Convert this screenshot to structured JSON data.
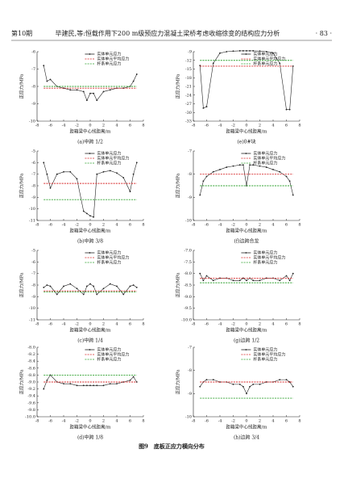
{
  "header": {
    "issue": "第10期",
    "authors_title": "毕建民,等:恒载作用下200 m级预应力混凝土梁桥考虑收缩徐变的结构应力分析",
    "page": "· 83 ·"
  },
  "figure_caption": "图9　底板正应力横向分布",
  "chart_data": [
    {
      "type": "line",
      "caption": "(a)中跨 1/2",
      "xlabel": "距箱梁中心线距离/m",
      "ylabel": "正应力/MPa",
      "xlim": [
        -8,
        8
      ],
      "xticks": [
        -8,
        -6,
        -4,
        -2,
        0,
        2,
        4,
        6,
        8
      ],
      "ylim": [
        -10,
        -6
      ],
      "yticks": [
        -10,
        -9,
        -8,
        -7,
        -6
      ],
      "x": [
        -7,
        -6.5,
        -6,
        -5,
        -4,
        -3,
        -2,
        -1,
        -0.5,
        0,
        0.5,
        1,
        2,
        3,
        4,
        5,
        6,
        6.5,
        7
      ],
      "series": [
        {
          "name": "实体单元应力",
          "color": "#222222",
          "linestyle": "solid",
          "marker": "circle",
          "values": [
            -6.8,
            -7.7,
            -7.6,
            -8.0,
            -8.1,
            -8.2,
            -8.2,
            -8.3,
            -8.8,
            -8.4,
            -8.4,
            -8.8,
            -8.3,
            -8.2,
            -8.1,
            -8.1,
            -8.0,
            -7.7,
            -7.3
          ]
        },
        {
          "name": "实体单元平均应力",
          "color": "#d62728",
          "linestyle": "dashed",
          "marker": "none",
          "values": [
            -8.1,
            -8.1,
            -8.1,
            -8.1,
            -8.1,
            -8.1,
            -8.1,
            -8.1,
            -8.1,
            -8.1,
            -8.1,
            -8.1,
            -8.1,
            -8.1,
            -8.1,
            -8.1,
            -8.1,
            -8.1,
            -8.1
          ]
        },
        {
          "name": "杆系单元应力",
          "color": "#2ca02c",
          "linestyle": "dashed",
          "marker": "none",
          "values": [
            -8.0,
            -8.0,
            -8.0,
            -8.0,
            -8.0,
            -8.0,
            -8.0,
            -8.0,
            -8.0,
            -8.0,
            -8.0,
            -8.0,
            -8.0,
            -8.0,
            -8.0,
            -8.0,
            -8.0,
            -8.0,
            -8.0
          ]
        }
      ]
    },
    {
      "type": "line",
      "caption": "(e)0#块",
      "xlabel": "距箱梁中心线距离/m",
      "ylabel": "正应力/MPa",
      "xlim": [
        -8,
        8
      ],
      "xticks": [
        -8,
        -6,
        -4,
        -2,
        0,
        2,
        4,
        6,
        8
      ],
      "ylim": [
        -33,
        -9
      ],
      "yticks": [
        -33,
        -30,
        -27,
        -24,
        -21,
        -18,
        -15,
        -12,
        -9
      ],
      "x": [
        -7,
        -6.5,
        -6,
        -5,
        -4,
        -3,
        -2,
        -1,
        -0.5,
        0,
        0.5,
        1,
        2,
        3,
        4,
        5,
        6,
        6.5,
        7
      ],
      "series": [
        {
          "name": "实体单元应力",
          "color": "#222222",
          "linestyle": "solid",
          "marker": "circle",
          "values": [
            -13.8,
            -28.5,
            -28,
            -13,
            -9.5,
            -9,
            -8.8,
            -8.7,
            -8.7,
            -8.7,
            -8.7,
            -8.7,
            -8.8,
            -9,
            -9.5,
            -13,
            -29,
            -29,
            -14
          ]
        },
        {
          "name": "实体单元平均应力",
          "color": "#d62728",
          "linestyle": "dashed",
          "marker": "none",
          "values": [
            -14,
            -14,
            -14,
            -14,
            -14,
            -14,
            -14,
            -14,
            -14,
            -14,
            -14,
            -14,
            -14,
            -14,
            -14,
            -14,
            -14,
            -14,
            -14
          ]
        },
        {
          "name": "杆系单元应力",
          "color": "#2ca02c",
          "linestyle": "dashed",
          "marker": "none",
          "values": [
            -12,
            -12,
            -12,
            -12,
            -12,
            -12,
            -12,
            -12,
            -12,
            -12,
            -12,
            -12,
            -12,
            -12,
            -12,
            -12,
            -12,
            -12,
            -12
          ]
        }
      ]
    },
    {
      "type": "line",
      "caption": "(b)中跨 3/8",
      "xlabel": "距箱梁中心线距离/m",
      "ylabel": "正应力/MPa",
      "xlim": [
        -8,
        8
      ],
      "xticks": [
        -8,
        -6,
        -4,
        -2,
        0,
        2,
        4,
        6,
        8
      ],
      "ylim": [
        -11,
        -5
      ],
      "yticks": [
        -11,
        -10,
        -9,
        -8,
        -7,
        -6,
        -5
      ],
      "x": [
        -7,
        -6.5,
        -6,
        -5,
        -4,
        -3,
        -2,
        -1,
        -0.5,
        0,
        0.5,
        1,
        2,
        3,
        4,
        5,
        6,
        6.5,
        7
      ],
      "series": [
        {
          "name": "实体单元应力",
          "color": "#222222",
          "linestyle": "solid",
          "marker": "circle",
          "values": [
            -6.0,
            -7.0,
            -8.2,
            -7.0,
            -6.8,
            -6.8,
            -7.4,
            -10.2,
            -10.4,
            -10.6,
            -10.7,
            -7.0,
            -6.8,
            -6.7,
            -6.9,
            -7.3,
            -8.5,
            -7.0,
            -6.0
          ]
        },
        {
          "name": "实体单元平均应力",
          "color": "#d62728",
          "linestyle": "dashed",
          "marker": "none",
          "values": [
            -7.8,
            -7.8,
            -7.8,
            -7.8,
            -7.8,
            -7.8,
            -7.8,
            -7.8,
            -7.8,
            -7.8,
            -7.8,
            -7.8,
            -7.8,
            -7.8,
            -7.8,
            -7.8,
            -7.8,
            -7.8,
            -7.8
          ]
        },
        {
          "name": "杆系单元应力",
          "color": "#2ca02c",
          "linestyle": "dashed",
          "marker": "none",
          "values": [
            -9.2,
            -9.2,
            -9.2,
            -9.2,
            -9.2,
            -9.2,
            -9.2,
            -9.2,
            -9.2,
            -9.2,
            -9.2,
            -9.2,
            -9.2,
            -9.2,
            -9.2,
            -9.2,
            -9.2,
            -9.2,
            -9.2
          ]
        }
      ]
    },
    {
      "type": "line",
      "caption": "(f)边跨合龙",
      "xlabel": "距箱梁中心线距离/m",
      "ylabel": "正应力/MPa",
      "xlim": [
        -8,
        8
      ],
      "xticks": [
        -8,
        -6,
        -4,
        -2,
        0,
        2,
        4,
        6,
        8
      ],
      "ylim": [
        -10,
        -7
      ],
      "yticks": [
        -10,
        -9,
        -8,
        -7
      ],
      "x": [
        -7,
        -6.5,
        -6,
        -5,
        -4,
        -3,
        -2,
        -1,
        -0.5,
        0,
        0.5,
        1,
        2,
        3,
        4,
        5,
        6,
        6.5,
        7
      ],
      "series": [
        {
          "name": "实体单元应力",
          "color": "#222222",
          "linestyle": "solid",
          "marker": "circle",
          "values": [
            -8.9,
            -8.3,
            -8.1,
            -7.9,
            -7.8,
            -7.7,
            -7.65,
            -7.6,
            -7.6,
            -8.5,
            -7.6,
            -7.6,
            -7.65,
            -7.7,
            -7.8,
            -7.9,
            -8.1,
            -8.3,
            -8.9
          ]
        },
        {
          "name": "实体单元平均应力",
          "color": "#d62728",
          "linestyle": "dashed",
          "marker": "none",
          "values": [
            -8.0,
            -8.0,
            -8.0,
            -8.0,
            -8.0,
            -8.0,
            -8.0,
            -8.0,
            -8.0,
            -8.0,
            -8.0,
            -8.0,
            -8.0,
            -8.0,
            -8.0,
            -8.0,
            -8.0,
            -8.0,
            -8.0
          ]
        },
        {
          "name": "杆系单元应力",
          "color": "#2ca02c",
          "linestyle": "dashed",
          "marker": "none",
          "values": [
            -8.5,
            -8.5,
            -8.5,
            -8.5,
            -8.5,
            -8.5,
            -8.5,
            -8.5,
            -8.5,
            -8.5,
            -8.5,
            -8.5,
            -8.5,
            -8.5,
            -8.5,
            -8.5,
            -8.5,
            -8.5,
            -8.5
          ]
        }
      ]
    },
    {
      "type": "line",
      "caption": "(c)中跨 1/4",
      "xlabel": "距箱梁中心线距离/m",
      "ylabel": "正应力/MPa",
      "xlim": [
        -8,
        8
      ],
      "xticks": [
        -8,
        -6,
        -4,
        -2,
        0,
        2,
        4,
        6,
        8
      ],
      "ylim": [
        -11,
        -5
      ],
      "yticks": [
        -11,
        -10,
        -9,
        -8,
        -7,
        -6,
        -5
      ],
      "x": [
        -7,
        -6.5,
        -6,
        -5,
        -4,
        -3,
        -2,
        -1,
        -0.5,
        0,
        0.5,
        1,
        2,
        3,
        4,
        5,
        6,
        6.5,
        7
      ],
      "series": [
        {
          "name": "实体单元应力",
          "color": "#222222",
          "linestyle": "solid",
          "marker": "circle",
          "values": [
            -8.2,
            -8.0,
            -8.1,
            -8.8,
            -8.1,
            -7.9,
            -8.3,
            -8.8,
            -8.1,
            -7.9,
            -8.1,
            -8.8,
            -8.3,
            -7.9,
            -8.1,
            -8.8,
            -8.1,
            -8.0,
            -8.2
          ]
        },
        {
          "name": "实体单元平均应力",
          "color": "#d62728",
          "linestyle": "dashed",
          "marker": "none",
          "values": [
            -8.5,
            -8.5,
            -8.5,
            -8.5,
            -8.5,
            -8.5,
            -8.5,
            -8.5,
            -8.5,
            -8.5,
            -8.5,
            -8.5,
            -8.5,
            -8.5,
            -8.5,
            -8.5,
            -8.5,
            -8.5,
            -8.5
          ]
        },
        {
          "name": "杆系单元应力",
          "color": "#2ca02c",
          "linestyle": "dashed",
          "marker": "none",
          "values": [
            -8.6,
            -8.6,
            -8.6,
            -8.6,
            -8.6,
            -8.6,
            -8.6,
            -8.6,
            -8.6,
            -8.6,
            -8.6,
            -8.6,
            -8.6,
            -8.6,
            -8.6,
            -8.6,
            -8.6,
            -8.6,
            -8.6
          ]
        }
      ]
    },
    {
      "type": "line",
      "caption": "(g)边跨 1/2",
      "xlabel": "距箱梁中心线距离/m",
      "ylabel": "正应力/MPa",
      "xlim": [
        -8,
        8
      ],
      "xticks": [
        -8,
        -6,
        -4,
        -2,
        0,
        2,
        4,
        6,
        8
      ],
      "ylim": [
        -10,
        -7
      ],
      "yticks": [
        {
          "value": -10,
          "label": "-10.0"
        },
        -9.5,
        {
          "value": -9,
          "label": "-9.0"
        },
        -8.5,
        {
          "value": -8,
          "label": "-8.0"
        },
        -7.5,
        {
          "value": -7,
          "label": "-7.0"
        }
      ],
      "x": [
        -7,
        -6.5,
        -6,
        -5,
        -4,
        -3,
        -2,
        -1,
        -0.5,
        0,
        0.5,
        1,
        2,
        3,
        4,
        5,
        6,
        6.5,
        7
      ],
      "series": [
        {
          "name": "实体单元应力",
          "color": "#222222",
          "linestyle": "solid",
          "marker": "circle",
          "values": [
            -8.0,
            -8.3,
            -8.1,
            -8.3,
            -8.2,
            -8.2,
            -8.3,
            -8.3,
            -8.2,
            -8.3,
            -8.2,
            -8.3,
            -8.3,
            -8.2,
            -8.2,
            -8.3,
            -8.1,
            -8.3,
            -8.0
          ]
        },
        {
          "name": "实体单元平均应力",
          "color": "#d62728",
          "linestyle": "dashed",
          "marker": "none",
          "values": [
            -8.2,
            -8.2,
            -8.2,
            -8.2,
            -8.2,
            -8.2,
            -8.2,
            -8.2,
            -8.2,
            -8.2,
            -8.2,
            -8.2,
            -8.2,
            -8.2,
            -8.2,
            -8.2,
            -8.2,
            -8.2,
            -8.2
          ]
        },
        {
          "name": "杆系单元应力",
          "color": "#2ca02c",
          "linestyle": "dashed",
          "marker": "none",
          "values": [
            -8.4,
            -8.4,
            -8.4,
            -8.4,
            -8.4,
            -8.4,
            -8.4,
            -8.4,
            -8.4,
            -8.4,
            -8.4,
            -8.4,
            -8.4,
            -8.4,
            -8.4,
            -8.4,
            -8.4,
            -8.4,
            -8.4
          ]
        }
      ]
    },
    {
      "type": "line",
      "caption": "(d)中跨 1/8",
      "xlabel": "距箱梁中心线距离/m",
      "ylabel": "正应力/MPa",
      "xlim": [
        -8,
        8
      ],
      "xticks": [
        -8,
        -6,
        -4,
        -2,
        0,
        2,
        4,
        6,
        8
      ],
      "ylim": [
        -10,
        -8
      ],
      "yticks": [
        {
          "value": -10,
          "label": "-10.0"
        },
        -9.8,
        -9.6,
        -9.4,
        -9.2,
        {
          "value": -9,
          "label": "-9.0"
        },
        -8.8,
        -8.6,
        -8.4,
        -8.2,
        {
          "value": -8,
          "label": "-8.0"
        }
      ],
      "x": [
        -7,
        -6.5,
        -6,
        -5,
        -4,
        -3,
        -2,
        -1,
        -0.5,
        0,
        0.5,
        1,
        2,
        3,
        4,
        5,
        6,
        6.5,
        7
      ],
      "series": [
        {
          "name": "实体单元应力",
          "color": "#222222",
          "linestyle": "solid",
          "marker": "circle",
          "values": [
            -9.2,
            -8.95,
            -8.8,
            -9.0,
            -9.05,
            -9.05,
            -9.1,
            -9.1,
            -9.1,
            -9.1,
            -9.1,
            -9.1,
            -9.1,
            -9.05,
            -9.05,
            -9.0,
            -8.95,
            -8.85,
            -9.0
          ]
        },
        {
          "name": "实体单元平均应力",
          "color": "#d62728",
          "linestyle": "dashed",
          "marker": "none",
          "values": [
            -9.0,
            -9.0,
            -9.0,
            -9.0,
            -9.0,
            -9.0,
            -9.0,
            -9.0,
            -9.0,
            -9.0,
            -9.0,
            -9.0,
            -9.0,
            -9.0,
            -9.0,
            -9.0,
            -9.0,
            -9.0,
            -9.0
          ]
        },
        {
          "name": "杆系单元应力",
          "color": "#2ca02c",
          "linestyle": "dashed",
          "marker": "none",
          "values": [
            -8.8,
            -8.8,
            -8.8,
            -8.8,
            -8.8,
            -8.8,
            -8.8,
            -8.8,
            -8.8,
            -8.8,
            -8.8,
            -8.8,
            -8.8,
            -8.8,
            -8.8,
            -8.8,
            -8.8,
            -8.8,
            -8.8
          ]
        }
      ]
    },
    {
      "type": "line",
      "caption": "(h)边跨 3/4",
      "xlabel": "距箱梁中心线距离/m",
      "ylabel": "正应力/MPa",
      "xlim": [
        -8,
        8
      ],
      "xticks": [
        -8,
        -6,
        -4,
        -2,
        0,
        2,
        4,
        6,
        8
      ],
      "ylim": [
        -10,
        -7
      ],
      "yticks": [
        -10,
        -9,
        -8,
        -7
      ],
      "x": [
        -7,
        -6.5,
        -6,
        -5,
        -4,
        -3,
        -2,
        -1,
        -0.5,
        0,
        0.5,
        1,
        2,
        3,
        4,
        5,
        6,
        6.5,
        7
      ],
      "series": [
        {
          "name": "实体单元应力",
          "color": "#222222",
          "linestyle": "solid",
          "marker": "circle",
          "values": [
            -8.7,
            -8.5,
            -8.4,
            -8.4,
            -8.5,
            -8.5,
            -8.6,
            -8.6,
            -8.7,
            -9.0,
            -8.7,
            -8.6,
            -8.6,
            -8.5,
            -8.5,
            -8.4,
            -8.4,
            -8.5,
            -8.7
          ]
        },
        {
          "name": "实体单元平均应力",
          "color": "#d62728",
          "linestyle": "dashed",
          "marker": "none",
          "values": [
            -8.5,
            -8.5,
            -8.5,
            -8.5,
            -8.5,
            -8.5,
            -8.5,
            -8.5,
            -8.5,
            -8.5,
            -8.5,
            -8.5,
            -8.5,
            -8.5,
            -8.5,
            -8.5,
            -8.5,
            -8.5,
            -8.5
          ]
        },
        {
          "name": "杆系单元应力",
          "color": "#2ca02c",
          "linestyle": "dashed",
          "marker": "none",
          "values": [
            -9.2,
            -9.2,
            -9.2,
            -9.2,
            -9.2,
            -9.2,
            -9.2,
            -9.2,
            -9.2,
            -9.2,
            -9.2,
            -9.2,
            -9.2,
            -9.2,
            -9.2,
            -9.2,
            -9.2,
            -9.2,
            -9.2
          ]
        }
      ]
    }
  ]
}
